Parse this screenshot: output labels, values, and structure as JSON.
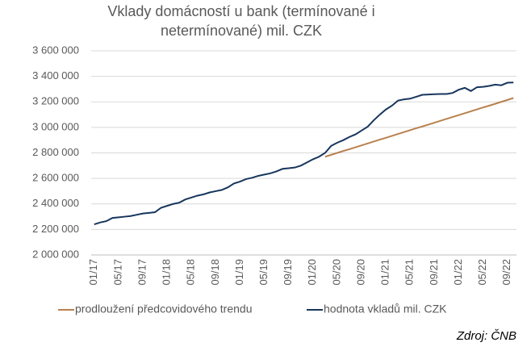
{
  "chart_data": {
    "type": "line",
    "title": "Vklady domácností u bank (termínované i netermínované) mil. CZK",
    "source": "Zdroj: ČNB",
    "categories": [
      "01/17",
      null,
      null,
      null,
      "05/17",
      null,
      null,
      null,
      "09/17",
      null,
      null,
      null,
      "01/18",
      null,
      null,
      null,
      "05/18",
      null,
      null,
      null,
      "09/18",
      null,
      null,
      null,
      "01/19",
      null,
      null,
      null,
      "05/19",
      null,
      null,
      null,
      "09/19",
      null,
      null,
      null,
      "01/20",
      null,
      null,
      null,
      "05/20",
      null,
      null,
      null,
      "09/20",
      null,
      null,
      null,
      "01/21",
      null,
      null,
      null,
      "05/21",
      null,
      null,
      null,
      "09/21",
      null,
      null,
      null,
      "01/22",
      null,
      null,
      null,
      "05/22",
      null,
      null,
      null,
      "09/22",
      null
    ],
    "series": [
      {
        "name": "prodloužení předcovidového trendu",
        "color": "#b9814e",
        "values": [
          null,
          null,
          null,
          null,
          null,
          null,
          null,
          null,
          null,
          null,
          null,
          null,
          null,
          null,
          null,
          null,
          null,
          null,
          null,
          null,
          null,
          null,
          null,
          null,
          null,
          null,
          null,
          null,
          null,
          null,
          null,
          null,
          null,
          null,
          null,
          null,
          null,
          null,
          2770000,
          2785000,
          2800000,
          2815000,
          2829000,
          2844000,
          2859000,
          2874000,
          2889000,
          2904000,
          2918000,
          2933000,
          2948000,
          2963000,
          2978000,
          2993000,
          3007000,
          3022000,
          3037000,
          3052000,
          3067000,
          3082000,
          3096000,
          3111000,
          3126000,
          3141000,
          3156000,
          3170000,
          3185000,
          3200000,
          3215000,
          3230000
        ]
      },
      {
        "name": "hodnota vkladů mil. CZK",
        "color": "#17365d",
        "values": [
          2240000,
          2255000,
          2265000,
          2290000,
          2295000,
          2300000,
          2305000,
          2315000,
          2325000,
          2330000,
          2335000,
          2370000,
          2385000,
          2400000,
          2410000,
          2435000,
          2450000,
          2465000,
          2475000,
          2490000,
          2500000,
          2510000,
          2530000,
          2560000,
          2575000,
          2595000,
          2605000,
          2620000,
          2630000,
          2640000,
          2655000,
          2675000,
          2680000,
          2685000,
          2700000,
          2725000,
          2750000,
          2770000,
          2800000,
          2855000,
          2880000,
          2900000,
          2925000,
          2945000,
          2975000,
          3005000,
          3055000,
          3100000,
          3140000,
          3170000,
          3210000,
          3220000,
          3225000,
          3240000,
          3255000,
          3258000,
          3260000,
          3262000,
          3262000,
          3270000,
          3295000,
          3310000,
          3285000,
          3315000,
          3318000,
          3325000,
          3335000,
          3330000,
          3350000,
          3352000
        ]
      }
    ],
    "ylim": [
      2000000,
      3600000
    ],
    "yticks": [
      {
        "value": 2000000,
        "label": "2 000 000"
      },
      {
        "value": 2200000,
        "label": "2 200 000"
      },
      {
        "value": 2400000,
        "label": "2 400 000"
      },
      {
        "value": 2600000,
        "label": "2 600 000"
      },
      {
        "value": 2800000,
        "label": "2 800 000"
      },
      {
        "value": 3000000,
        "label": "3 000 000"
      },
      {
        "value": 3200000,
        "label": "3 200 000"
      },
      {
        "value": 3400000,
        "label": "3 400 000"
      },
      {
        "value": 3600000,
        "label": "3 600 000"
      }
    ],
    "grid": true
  }
}
